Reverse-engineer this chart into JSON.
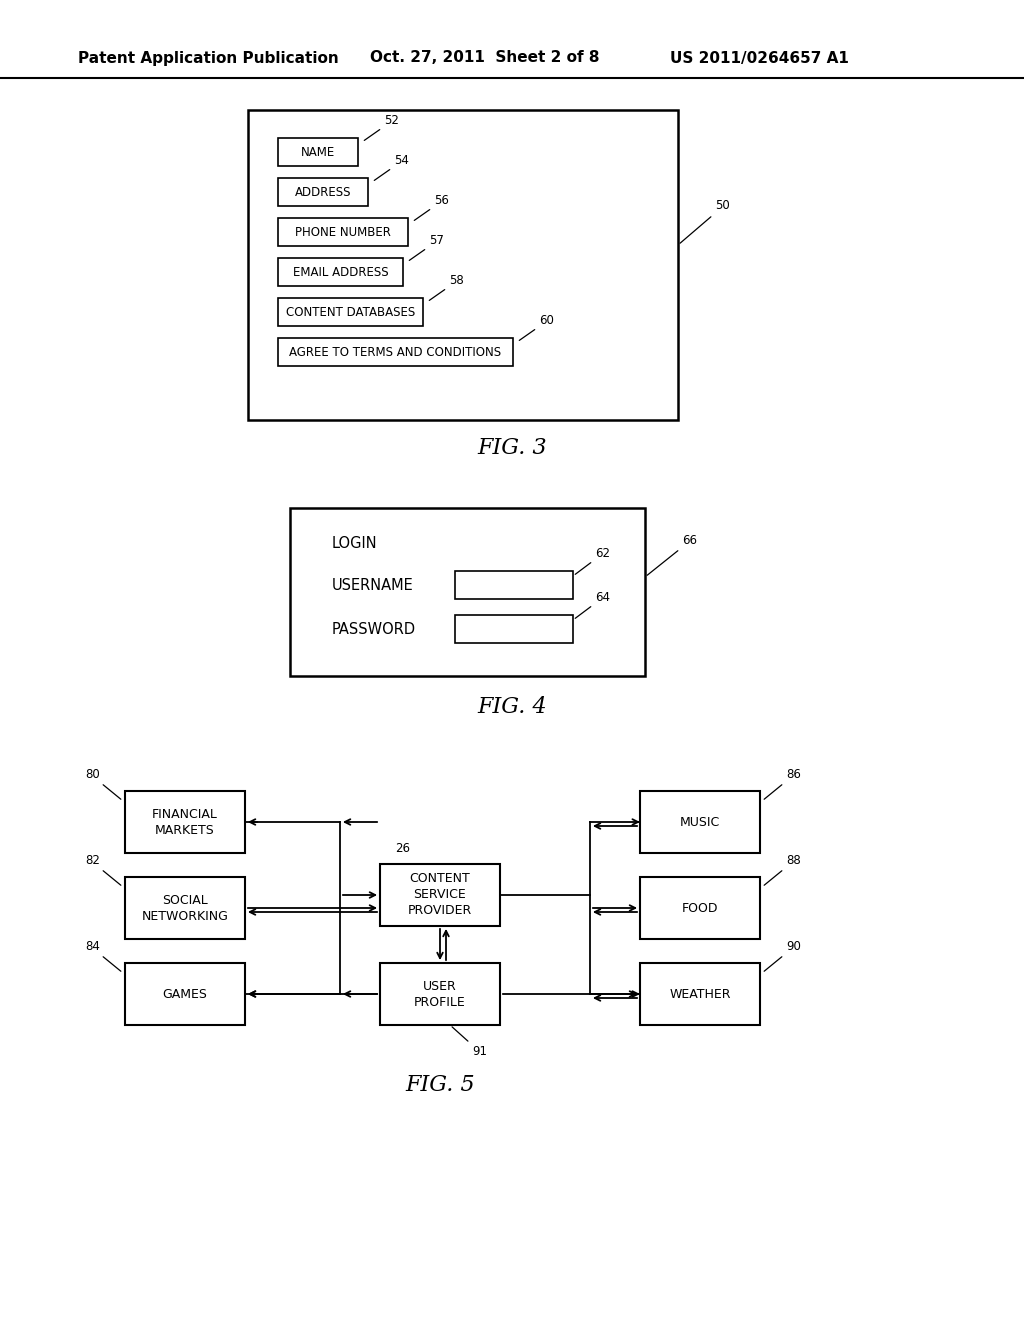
{
  "bg_color": "#ffffff",
  "header_left": "Patent Application Publication",
  "header_mid": "Oct. 27, 2011  Sheet 2 of 8",
  "header_right": "US 2011/0264657 A1",
  "fig3_caption": "FIG. 3",
  "fig4_caption": "FIG. 4",
  "fig5_caption": "FIG. 5",
  "fig3_outer_ref": "50",
  "fig4_ref_62": "62",
  "fig4_ref_64": "64",
  "fig4_ref_66": "66"
}
